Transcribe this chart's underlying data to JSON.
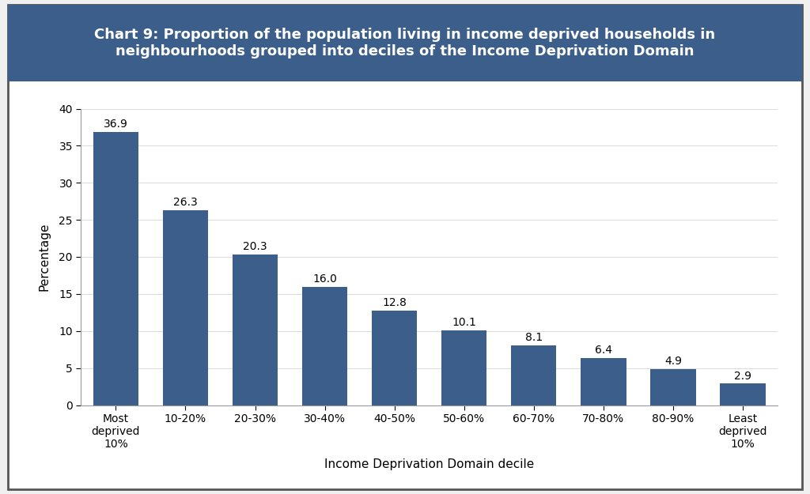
{
  "title_line1": "Chart 9: Proportion of the population living in income deprived households in",
  "title_line2": "neighbourhoods grouped into deciles of the Income Deprivation Domain",
  "categories": [
    "Most\ndeprived\n10%",
    "10-20%",
    "20-30%",
    "30-40%",
    "40-50%",
    "50-60%",
    "60-70%",
    "70-80%",
    "80-90%",
    "Least\ndeprived\n10%"
  ],
  "values": [
    36.9,
    26.3,
    20.3,
    16.0,
    12.8,
    10.1,
    8.1,
    6.4,
    4.9,
    2.9
  ],
  "bar_color": "#3B5F8A",
  "xlabel": "Income Deprivation Domain decile",
  "ylabel": "Percentage",
  "ylim": [
    0,
    40
  ],
  "yticks": [
    0,
    5,
    10,
    15,
    20,
    25,
    30,
    35,
    40
  ],
  "title_bg_color": "#3B5F8A",
  "title_text_color": "#FFFFFF",
  "chart_bg_color": "#FFFFFF",
  "outer_border_color": "#555555",
  "title_fontsize": 13,
  "label_fontsize": 11,
  "tick_fontsize": 10,
  "value_fontsize": 10
}
